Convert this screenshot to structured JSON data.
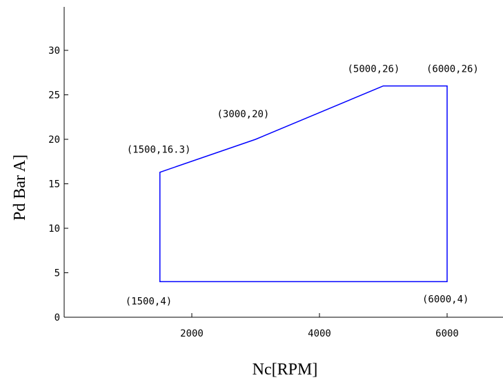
{
  "chart_data": {
    "type": "line",
    "title": "",
    "xlabel": "Nc[RPM]",
    "ylabel": "Pd Bar A]",
    "xlim": [
      0,
      7000
    ],
    "ylim": [
      0,
      35
    ],
    "xticks": [
      2000,
      4000,
      6000
    ],
    "yticks": [
      0,
      5,
      10,
      15,
      20,
      25,
      30
    ],
    "grid": false,
    "legend": "none",
    "series": [
      {
        "color": "#0000ff",
        "closed": true,
        "points": [
          {
            "x": 1500,
            "y": 4
          },
          {
            "x": 1500,
            "y": 16.3
          },
          {
            "x": 3000,
            "y": 20
          },
          {
            "x": 5000,
            "y": 26
          },
          {
            "x": 6000,
            "y": 26
          },
          {
            "x": 6000,
            "y": 4
          }
        ]
      }
    ],
    "annotations": [
      {
        "text": "(1500,16.3)",
        "x": 1500,
        "y": 16.3
      },
      {
        "text": "(3000,20)",
        "x": 3000,
        "y": 20
      },
      {
        "text": "(5000,26)",
        "x": 5000,
        "y": 26
      },
      {
        "text": "(6000,26)",
        "x": 6000,
        "y": 26
      },
      {
        "text": "(1500,4)",
        "x": 1500,
        "y": 4
      },
      {
        "text": "(6000,4)",
        "x": 6000,
        "y": 4
      }
    ]
  }
}
